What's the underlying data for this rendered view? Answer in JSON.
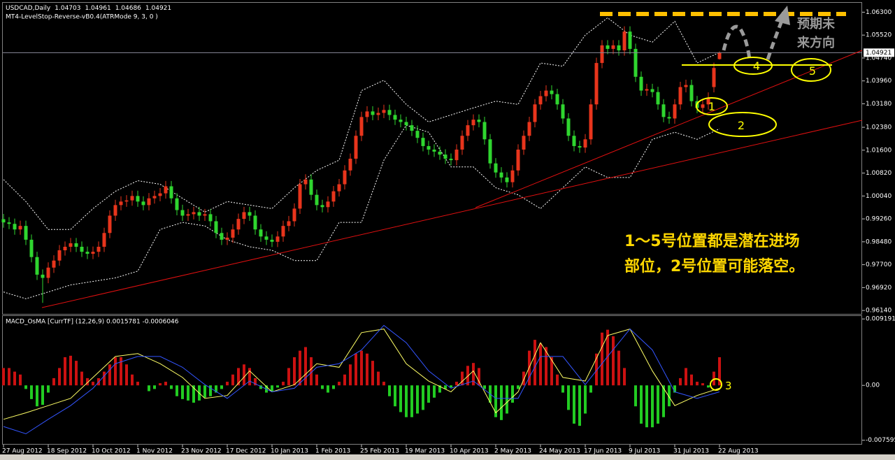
{
  "chart_data": [
    {
      "type": "candlestick",
      "title": "USDCAD,Daily",
      "indicator": "MT4-LevelStop-Reverse-vB0.4(ATRMode 9, 3, 0 )",
      "categories": [
        "27 Aug 2012",
        null,
        null,
        null,
        null,
        null,
        null,
        null,
        "18 Sep 2012",
        null,
        null,
        null,
        null,
        null,
        null,
        null,
        "10 Oct 2012",
        null,
        null,
        null,
        null,
        null,
        null,
        null,
        "1 Nov 2012",
        null,
        null,
        null,
        null,
        null,
        null,
        null,
        "23 Nov 2012",
        null,
        null,
        null,
        null,
        null,
        null,
        null,
        "17 Dec 2012",
        null,
        null,
        null,
        null,
        null,
        null,
        null,
        "10 Jan 2013",
        null,
        null,
        null,
        null,
        null,
        null,
        null,
        "1 Feb 2013",
        null,
        null,
        null,
        null,
        null,
        null,
        null,
        "25 Feb 2013",
        null,
        null,
        null,
        null,
        null,
        null,
        null,
        "19 Mar 2013",
        null,
        null,
        null,
        null,
        null,
        null,
        null,
        "10 Apr 2013",
        null,
        null,
        null,
        null,
        null,
        null,
        null,
        "2 May 2013",
        null,
        null,
        null,
        null,
        null,
        null,
        null,
        "24 May 2013",
        null,
        null,
        null,
        null,
        null,
        null,
        null,
        "17 Jun 2013",
        null,
        null,
        null,
        null,
        null,
        null,
        null,
        "9 Jul 2013",
        null,
        null,
        null,
        null,
        null,
        null,
        null,
        "31 Jul 2013",
        null,
        null,
        null,
        null,
        null,
        null,
        null,
        "22 Aug 2013"
      ],
      "open": [
        0.9925,
        0.9914,
        0.9909,
        0.989,
        0.9902,
        0.9855,
        0.9796,
        0.9736,
        0.9725,
        0.976,
        0.9784,
        0.9819,
        0.9831,
        0.9843,
        0.9831,
        0.9814,
        0.9807,
        0.9814,
        0.9831,
        0.9878,
        0.9937,
        0.9973,
        0.9985,
        0.9989,
        1.0004,
        0.9985,
        0.9973,
        0.9996,
        1.0004,
        1.0013,
        1.0037,
        0.9996,
        0.9956,
        0.9937,
        0.9942,
        0.9949,
        0.9937,
        0.9942,
        0.9918,
        0.9878,
        0.9855,
        0.9862,
        0.989,
        0.9926,
        0.9949,
        0.9937,
        0.989,
        0.9866,
        0.9855,
        0.9848,
        0.9866,
        0.9902,
        0.9918,
        0.9961,
        1.0044,
        1.006,
        1.0008,
        0.9973,
        0.9966,
        0.9985,
        1.002,
        1.0044,
        1.0091,
        1.0131,
        1.0209,
        1.0273,
        1.0292,
        1.028,
        1.0287,
        1.0297,
        1.028,
        1.0264,
        1.0256,
        1.0245,
        1.0226,
        1.0202,
        1.0174,
        1.0162,
        1.0155,
        1.0145,
        1.0131,
        1.0126,
        1.0162,
        1.0209,
        1.0245,
        1.0264,
        1.0256,
        1.0197,
        1.0115,
        1.0084,
        1.0067,
        1.0051,
        1.0091,
        1.0162,
        1.0209,
        1.0256,
        1.0316,
        1.0344,
        1.0363,
        1.0351,
        1.0316,
        1.0268,
        1.0209,
        1.0174,
        1.0169,
        1.0197,
        1.0316,
        1.0457,
        1.0517,
        1.0505,
        1.0517,
        1.05,
        1.0564,
        1.0505,
        1.041,
        1.0363,
        1.0368,
        1.0358,
        1.0316,
        1.0273,
        1.0268,
        1.0316,
        1.0375,
        1.0382,
        1.0327,
        1.0304,
        1.0316,
        1.0375,
        1.04703
      ],
      "high": [
        0.9943,
        0.9932,
        0.9927,
        0.992,
        0.992,
        0.9873,
        0.9814,
        0.9754,
        0.9778,
        0.9802,
        0.9837,
        0.9849,
        0.9861,
        0.9861,
        0.9849,
        0.9832,
        0.9832,
        0.9849,
        0.9896,
        0.9955,
        0.9991,
        1.0003,
        1.0007,
        1.0022,
        1.0022,
        1.0003,
        1.0014,
        1.0022,
        1.0031,
        1.0055,
        1.0055,
        1.0014,
        0.9974,
        0.996,
        0.9967,
        0.9967,
        0.996,
        0.996,
        0.9936,
        0.9896,
        0.988,
        0.9908,
        0.9944,
        0.9967,
        0.9967,
        0.9955,
        0.9908,
        0.9884,
        0.9873,
        0.9884,
        0.992,
        0.9936,
        0.9979,
        1.0062,
        1.0078,
        1.0078,
        1.0026,
        0.9991,
        1.0003,
        1.0038,
        1.0062,
        1.0109,
        1.0149,
        1.0227,
        1.0291,
        1.031,
        1.031,
        1.0305,
        1.0315,
        1.0315,
        1.0298,
        1.0282,
        1.0274,
        1.0263,
        1.0244,
        1.022,
        1.0192,
        1.018,
        1.0173,
        1.0163,
        1.0149,
        1.018,
        1.0227,
        1.0263,
        1.0282,
        1.0282,
        1.0274,
        1.0215,
        1.0133,
        1.0102,
        1.0085,
        1.0109,
        1.018,
        1.0227,
        1.0274,
        1.0334,
        1.0362,
        1.0381,
        1.0381,
        1.0369,
        1.0334,
        1.0286,
        1.0227,
        1.0192,
        1.0215,
        1.0334,
        1.0475,
        1.0535,
        1.0535,
        1.0535,
        1.0535,
        1.0582,
        1.0582,
        1.0523,
        1.0428,
        1.0386,
        1.0386,
        1.0376,
        1.0334,
        1.0291,
        1.0334,
        1.0393,
        1.04,
        1.04,
        1.0345,
        1.0334,
        1.0357,
        1.0458,
        1.04961
      ],
      "low": [
        0.9896,
        0.9891,
        0.9872,
        0.9872,
        0.9837,
        0.9778,
        0.9718,
        0.964,
        0.9707,
        0.9742,
        0.9766,
        0.9801,
        0.9813,
        0.9813,
        0.9796,
        0.9789,
        0.9789,
        0.9796,
        0.9813,
        0.986,
        0.9919,
        0.9955,
        0.9967,
        0.9971,
        0.9967,
        0.9955,
        0.9955,
        0.9978,
        0.9986,
        0.9995,
        0.9978,
        0.9938,
        0.9919,
        0.9919,
        0.9924,
        0.9919,
        0.9919,
        0.99,
        0.986,
        0.9837,
        0.9837,
        0.9844,
        0.9872,
        0.9908,
        0.9919,
        0.9872,
        0.9848,
        0.9837,
        0.983,
        0.983,
        0.9848,
        0.9884,
        0.99,
        0.9943,
        1.0026,
        0.999,
        0.9955,
        0.9948,
        0.9948,
        0.9967,
        1.0002,
        1.0026,
        1.0073,
        1.0113,
        1.0191,
        1.0255,
        1.0262,
        1.0262,
        1.0269,
        1.0262,
        1.0246,
        1.0238,
        1.0227,
        1.0208,
        1.0184,
        1.0156,
        1.0144,
        1.0137,
        1.0127,
        1.0113,
        1.0108,
        1.0108,
        1.0144,
        1.0191,
        1.0227,
        1.0238,
        1.0179,
        1.0097,
        1.0066,
        1.0049,
        1.0033,
        1.0033,
        1.0073,
        1.0144,
        1.0191,
        1.0238,
        1.0298,
        1.0326,
        1.0333,
        1.0298,
        1.025,
        1.0191,
        1.0156,
        1.0151,
        1.0151,
        1.0179,
        1.0298,
        1.0439,
        1.0487,
        1.0487,
        1.0482,
        1.0482,
        1.0487,
        1.0392,
        1.0345,
        1.0345,
        1.034,
        1.0298,
        1.0255,
        1.025,
        1.025,
        1.0298,
        1.0357,
        1.0309,
        1.0286,
        1.0286,
        1.0298,
        1.0357,
        1.04686
      ],
      "close": [
        0.9914,
        0.9909,
        0.989,
        0.9902,
        0.9855,
        0.9796,
        0.9736,
        0.9725,
        0.976,
        0.9784,
        0.9819,
        0.9831,
        0.9843,
        0.9831,
        0.9814,
        0.9807,
        0.9814,
        0.9831,
        0.9878,
        0.9937,
        0.9973,
        0.9985,
        0.9989,
        1.0004,
        0.9985,
        0.9973,
        0.9996,
        1.0004,
        1.0013,
        1.0037,
        0.9996,
        0.9956,
        0.9937,
        0.9942,
        0.9949,
        0.9937,
        0.9942,
        0.9918,
        0.9878,
        0.9855,
        0.9862,
        0.989,
        0.9926,
        0.9949,
        0.9937,
        0.989,
        0.9866,
        0.9855,
        0.9848,
        0.9866,
        0.9902,
        0.9918,
        0.9961,
        1.0044,
        1.006,
        1.0008,
        0.9973,
        0.9966,
        0.9985,
        1.002,
        1.0044,
        1.0091,
        1.0131,
        1.0209,
        1.0273,
        1.0292,
        1.028,
        1.0287,
        1.0297,
        1.028,
        1.0264,
        1.0256,
        1.0245,
        1.0226,
        1.0202,
        1.0174,
        1.0162,
        1.0155,
        1.0145,
        1.0131,
        1.0126,
        1.0162,
        1.0209,
        1.0245,
        1.0264,
        1.0256,
        1.0197,
        1.0115,
        1.0084,
        1.0067,
        1.0051,
        1.0091,
        1.0162,
        1.0209,
        1.0256,
        1.0316,
        1.0344,
        1.0363,
        1.0351,
        1.0316,
        1.0268,
        1.0209,
        1.0174,
        1.0169,
        1.0197,
        1.0316,
        1.0457,
        1.0517,
        1.0505,
        1.0517,
        1.05,
        1.0564,
        1.0505,
        1.041,
        1.0363,
        1.0368,
        1.0358,
        1.0316,
        1.0273,
        1.0268,
        1.0316,
        1.0375,
        1.0382,
        1.0327,
        1.0304,
        1.0316,
        1.0339,
        1.044,
        1.04921
      ],
      "up_color": "#e8351c",
      "down_color": "#2fd62f",
      "bands": [
        {
          "color": "#ffffff",
          "values": [
            1.006,
            0.9985,
            0.989,
            0.989,
            0.9961,
            1.002,
            1.0056,
            1.0044,
            0.9996,
            0.9949,
            0.9985,
            0.9973,
            0.9961,
            1.0032,
            1.0091,
            1.0126,
            1.0363,
            1.0398,
            1.0316,
            1.0256,
            1.028,
            1.0304,
            1.0327,
            1.0316,
            1.0457,
            1.0446,
            1.0552,
            1.0611,
            1.0552,
            1.0528,
            1.0599,
            1.0457,
            1.0493
          ]
        },
        {
          "color": "#ffffff",
          "values": [
            0.9677,
            0.9654,
            0.9677,
            0.9701,
            0.9713,
            0.9725,
            0.9748,
            0.989,
            0.9914,
            0.9902,
            0.9855,
            0.9831,
            0.9819,
            0.9784,
            0.9784,
            0.9914,
            0.9914,
            1.0126,
            1.0245,
            1.0221,
            1.0103,
            1.0103,
            1.0032,
            1.0008,
            0.9961,
            1.0032,
            1.0103,
            1.0067,
            1.0067,
            1.0197,
            1.0221,
            1.0197,
            1.0233
          ]
        }
      ],
      "ylim": [
        0.96,
        1.0662
      ],
      "yticks": [
        {
          "value": 1.063,
          "label": "1.06300"
        },
        {
          "value": 1.0552,
          "label": "1.05520"
        },
        {
          "value": 1.0474,
          "label": "1.04740"
        },
        {
          "value": 1.0396,
          "label": "1.03960"
        },
        {
          "value": 1.0318,
          "label": "1.03180"
        },
        {
          "value": 1.0238,
          "label": "1.02380"
        },
        {
          "value": 1.016,
          "label": "1.01600"
        },
        {
          "value": 1.0082,
          "label": "1.00820"
        },
        {
          "value": 1.0004,
          "label": "1.00040"
        },
        {
          "value": 0.9926,
          "label": "0.99260"
        },
        {
          "value": 0.9848,
          "label": "0.98480"
        },
        {
          "value": 0.977,
          "label": "0.97700"
        },
        {
          "value": 0.9692,
          "label": "0.96920"
        },
        {
          "value": 0.9614,
          "label": "0.96140"
        }
      ],
      "note_lines": [
        "1～5号位置都是潜在进场",
        "部位，2号位置可能落空。"
      ],
      "forecast_label": [
        "预期未",
        "来方向"
      ],
      "markers": [
        "1",
        "2",
        "4",
        "5"
      ]
    },
    {
      "type": "macd",
      "title": "MACD_OsMA [CurrTF] (12,26,9) 0.0015781 -0.0006046",
      "values": [
        0.0024,
        0.0024,
        0.0019,
        0.0015,
        -0.0005,
        -0.0019,
        -0.0029,
        -0.0027,
        -0.001,
        0.001,
        0.0024,
        0.0039,
        0.0041,
        0.0034,
        0.0019,
        0.001,
        0.0005,
        0.001,
        0.0019,
        0.0029,
        0.0039,
        0.0039,
        0.0029,
        0.0015,
        0.0005,
        0,
        -0.0008,
        -0.0005,
        0.0003,
        0.0005,
        -0.0005,
        -0.0015,
        -0.0019,
        -0.0021,
        -0.0024,
        -0.0021,
        -0.0017,
        -0.0015,
        -0.001,
        -0.0005,
        0.0005,
        0.0015,
        0.0024,
        0.0029,
        0.0024,
        0.001,
        -0.0005,
        -0.001,
        -0.0008,
        -0.0003,
        0.0005,
        0.0024,
        0.0039,
        0.0048,
        0.0053,
        0.0039,
        0.0015,
        -0.0005,
        -0.001,
        -0.0005,
        0.0005,
        0.0015,
        0.0029,
        0.0044,
        0.0048,
        0.0044,
        0.0034,
        0.0019,
        0.0005,
        -0.0015,
        -0.0029,
        -0.0037,
        -0.0044,
        -0.0044,
        -0.0039,
        -0.0034,
        -0.0024,
        -0.0017,
        -0.001,
        -0.0005,
        -0.0003,
        0.0005,
        0.0019,
        0.0027,
        0.0031,
        0.0024,
        -0.0005,
        -0.0024,
        -0.0044,
        -0.0048,
        -0.0039,
        -0.0024,
        -0.0005,
        0.0019,
        0.0048,
        0.0063,
        0.0058,
        0.0053,
        0.0039,
        0.0015,
        -0.001,
        -0.0034,
        -0.0053,
        -0.0056,
        -0.0039,
        -0.001,
        0.0044,
        0.0073,
        0.0077,
        0.0068,
        0.0048,
        0.0024,
        0,
        -0.0029,
        -0.0053,
        -0.0058,
        -0.0058,
        -0.0053,
        -0.0044,
        -0.0029,
        -0.001,
        0.001,
        0.0024,
        0.0015,
        0.0005,
        0.0003,
        -0.0003,
        0.0019,
        0.0039
      ],
      "up_color": "#cc1111",
      "down_color": "#22cc22",
      "series": [
        {
          "color": "#ffff66",
          "values": [
            -0.0047,
            -0.0038,
            -0.0028,
            -0.0018,
            0.0011,
            0.004,
            0.0044,
            0.003,
            0.0011,
            -0.0018,
            -0.0014,
            0.002,
            -0.0009,
            0.0001,
            0.003,
            0.0025,
            0.0073,
            0.0078,
            0.003,
            0.0006,
            -0.0009,
            0.002,
            -0.0038,
            -0.0009,
            0.0059,
            0.0011,
            0.0006,
            0.0069,
            0.0078,
            0.002,
            -0.0028,
            -0.0014,
            -0.0004
          ]
        },
        {
          "color": "#3355ff",
          "values": [
            -0.0057,
            -0.0067,
            -0.0047,
            -0.0028,
            -0.0004,
            0.003,
            0.004,
            0.004,
            0.0025,
            0.0001,
            -0.0018,
            0.0006,
            -0.0009,
            -0.0004,
            0.0025,
            0.003,
            0.0049,
            0.0083,
            0.0059,
            0.002,
            -0.0004,
            0.0006,
            -0.0018,
            -0.0018,
            0.004,
            0.004,
            0.0001,
            0.004,
            0.0078,
            0.0049,
            -0.0009,
            -0.0018,
            -0.0009
          ]
        }
      ],
      "ylim": [
        -0.0082,
        0.0096
      ],
      "yticks": [
        0.0091914,
        {
          "value": 0,
          "label": "0.00"
        },
        -0.0075951
      ],
      "marker": "3"
    }
  ]
}
